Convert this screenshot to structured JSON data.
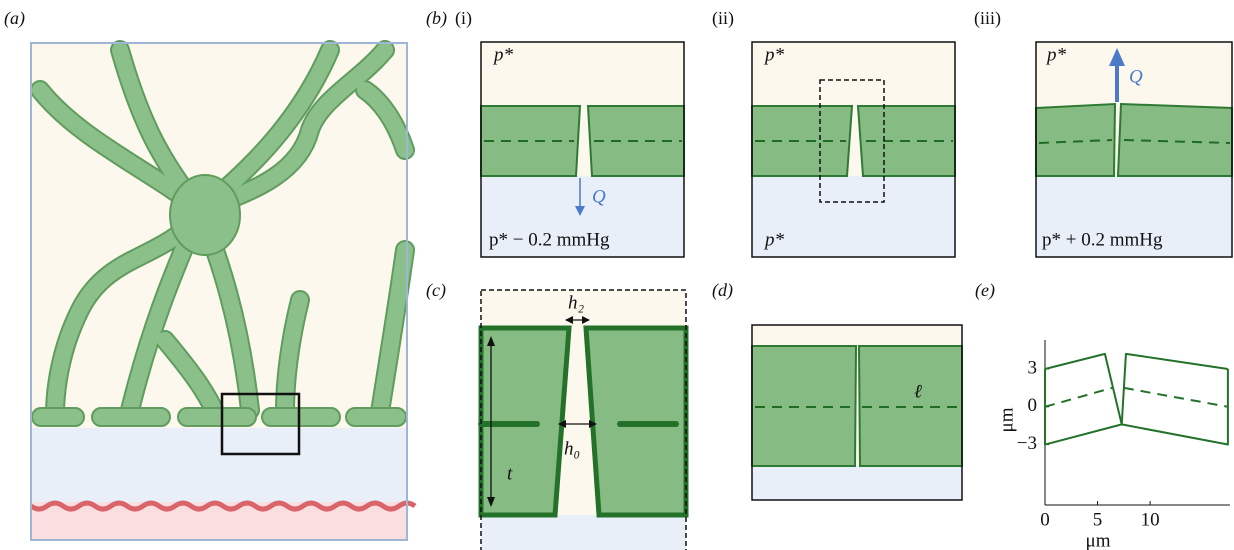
{
  "panels": {
    "a": {
      "label": "(a)"
    },
    "b": {
      "label": "(b)",
      "subpanels": [
        {
          "label": "(i)",
          "top": "p*",
          "bottom": "p* − 0.2 mmHg",
          "flow": "Q"
        },
        {
          "label": "(ii)",
          "top": "p*",
          "bottom": "p*"
        },
        {
          "label": "(iii)",
          "top": "p*",
          "bottom": "p* + 0.2 mmHg",
          "flow": "Q"
        }
      ]
    },
    "c": {
      "label": "(c)",
      "gap_top": "h₂",
      "gap_mid": "h₀",
      "thickness": "t"
    },
    "d": {
      "label": "(d)",
      "length": "ℓ"
    },
    "e": {
      "label": "(e)",
      "xlabel": "μm",
      "ylabel": "μm",
      "xlim": [
        0,
        17.6
      ],
      "ylim": [
        -7.8,
        5.3
      ],
      "xticks": [
        0,
        5,
        10
      ],
      "yticks": [
        3,
        0,
        {
          "value": -3,
          "label": "−3"
        }
      ],
      "curves": [
        {
          "x": [
            0,
            5.7,
            7.3,
            0,
            0
          ],
          "y": [
            3,
            4.2,
            -1.4,
            -3,
            3
          ],
          "style": "solid"
        },
        {
          "x": [
            17.4,
            7.7,
            7.3,
            17.4,
            17.4
          ],
          "y": [
            3,
            4.2,
            -1.4,
            -3,
            3
          ],
          "style": "solid"
        },
        {
          "x": [
            0,
            6.4
          ],
          "y": [
            0,
            1.5
          ],
          "style": "dashed"
        },
        {
          "x": [
            7.5,
            17.4
          ],
          "y": [
            1.5,
            0
          ],
          "style": "dashed"
        }
      ]
    }
  }
}
